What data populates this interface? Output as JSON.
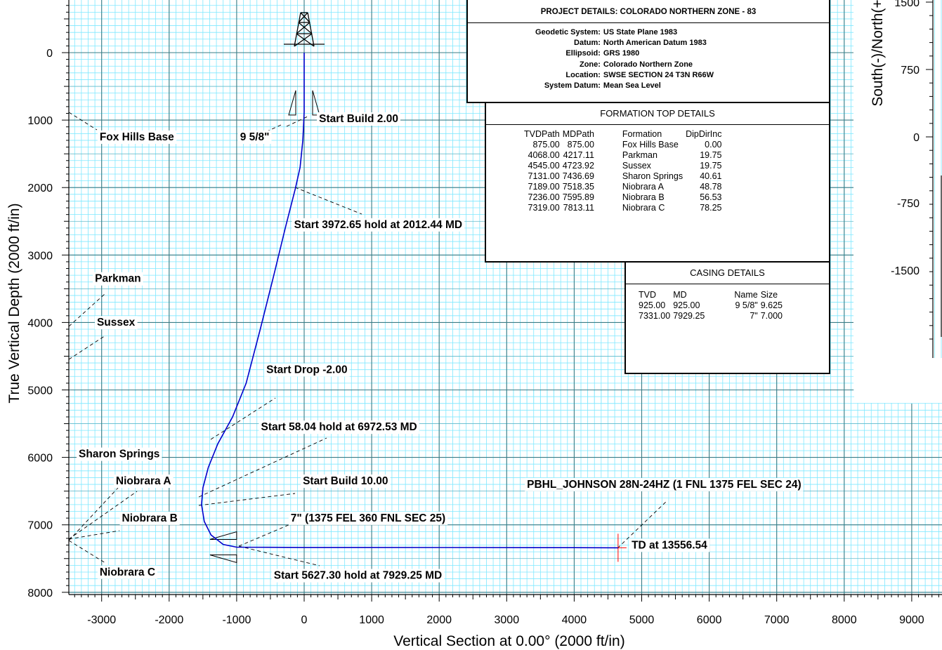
{
  "chart_data": {
    "type": "line",
    "xlabel": "Vertical Section at 0.00° (2000 ft/in)",
    "ylabel": "True Vertical Depth (2000 ft/in)",
    "xlim": [
      -3500,
      9400
    ],
    "ylim": [
      -750,
      8100
    ],
    "x_ticks": [
      -3000,
      -2000,
      -1000,
      0,
      1000,
      2000,
      3000,
      4000,
      5000,
      6000,
      7000,
      8000,
      9000
    ],
    "y_ticks": [
      0,
      1000,
      2000,
      3000,
      4000,
      5000,
      6000,
      7000,
      8000
    ],
    "grid": true,
    "grid_color": "#7fe8ff",
    "major_grid_color": "#3a7c86",
    "series": [
      {
        "color": "#0000cc",
        "points": [
          [
            0,
            0
          ],
          [
            0,
            875
          ],
          [
            -5,
            1000
          ],
          [
            -20,
            1300
          ],
          [
            -60,
            1700
          ],
          [
            -130,
            2012
          ],
          [
            -280,
            2600
          ],
          [
            -450,
            3300
          ],
          [
            -650,
            4100
          ],
          [
            -860,
            4900
          ],
          [
            -1060,
            5400
          ],
          [
            -1280,
            5800
          ],
          [
            -1420,
            6150
          ],
          [
            -1500,
            6450
          ],
          [
            -1520,
            6700
          ],
          [
            -1480,
            6950
          ],
          [
            -1380,
            7150
          ],
          [
            -1200,
            7290
          ],
          [
            -1000,
            7331
          ],
          [
            0,
            7335
          ],
          [
            2000,
            7336
          ],
          [
            4000,
            7338
          ],
          [
            4650,
            7340
          ]
        ]
      }
    ],
    "annotations": [
      {
        "text": "Start Build 2.00",
        "x": 220,
        "y": 1030
      },
      {
        "text": "9 5/8\"",
        "x": -950,
        "y": 1300
      },
      {
        "text": "Fox Hills Base",
        "x": -3030,
        "y": 1300
      },
      {
        "text": "Start 3972.65 hold at 2012.44 MD",
        "x": -150,
        "y": 2600
      },
      {
        "text": "Parkman",
        "x": -3100,
        "y": 3400
      },
      {
        "text": "Sussex",
        "x": -3070,
        "y": 4050
      },
      {
        "text": "Start Drop -2.00",
        "x": -560,
        "y": 4750
      },
      {
        "text": "Start 58.04 hold at 6972.53 MD",
        "x": -640,
        "y": 5600
      },
      {
        "text": "Sharon Springs",
        "x": -3340,
        "y": 6000
      },
      {
        "text": "Niobrara A",
        "x": -2790,
        "y": 6400
      },
      {
        "text": "Start Build 10.00",
        "x": -20,
        "y": 6400
      },
      {
        "text": "PBHL_JOHNSON 28N-24HZ (1 FNL 1375 FEL SEC 24)",
        "x": 3300,
        "y": 6450
      },
      {
        "text": "Niobrara B",
        "x": -2700,
        "y": 6950
      },
      {
        "text": "7\" (1375 FEL 360 FNL SEC 25)",
        "x": -200,
        "y": 6950
      },
      {
        "text": "TD at 13556.54",
        "x": 4850,
        "y": 7350
      },
      {
        "text": "Niobrara C",
        "x": -3030,
        "y": 7750
      },
      {
        "text": "Start 5627.30 hold at 7929.25 MD",
        "x": -450,
        "y": 7800
      }
    ]
  },
  "inset_plot": {
    "ylabel": "South(-)/North(+)",
    "y_ticks": [
      "1500",
      "750",
      "0",
      "-750",
      "-1500"
    ]
  },
  "project_details": {
    "title": "PROJECT  DETAILS:  COLORADO NORTHERN ZONE - 83",
    "rows": [
      {
        "label": "Geodetic System:",
        "value": "US State Plane 1983"
      },
      {
        "label": "Datum:",
        "value": "North American Datum 1983"
      },
      {
        "label": "Ellipsoid:",
        "value": "GRS 1980"
      },
      {
        "label": "Zone:",
        "value": "Colorado Northern Zone"
      },
      {
        "label": "Location:",
        "value": "SWSE SECTION 24 T3N R66W"
      },
      {
        "label": "System Datum:",
        "value": "Mean Sea Level"
      }
    ]
  },
  "formation_top_details": {
    "title": "FORMATION  TOP  DETAILS",
    "headers": [
      "TVDPath",
      "MDPath",
      "Formation",
      "DipDirInc"
    ],
    "rows": [
      [
        "875.00",
        "875.00",
        "Fox Hills Base",
        "0.00"
      ],
      [
        "4068.00",
        "4217.11",
        "Parkman",
        "19.75"
      ],
      [
        "4545.00",
        "4723.92",
        "Sussex",
        "19.75"
      ],
      [
        "7131.00",
        "7436.69",
        "Sharon Springs",
        "40.61"
      ],
      [
        "7189.00",
        "7518.35",
        "Niobrara A",
        "48.78"
      ],
      [
        "7236.00",
        "7595.89",
        "Niobrara B",
        "56.53"
      ],
      [
        "7319.00",
        "7813.11",
        "Niobrara C",
        "78.25"
      ]
    ]
  },
  "casing_details": {
    "title": "CASING  DETAILS",
    "headers": [
      "TVD",
      "MD",
      "Name",
      "Size"
    ],
    "rows": [
      [
        "925.00",
        "925.00",
        "9 5/8\"",
        "9.625"
      ],
      [
        "7331.00",
        "7929.25",
        "7\"",
        "7.000"
      ]
    ]
  }
}
